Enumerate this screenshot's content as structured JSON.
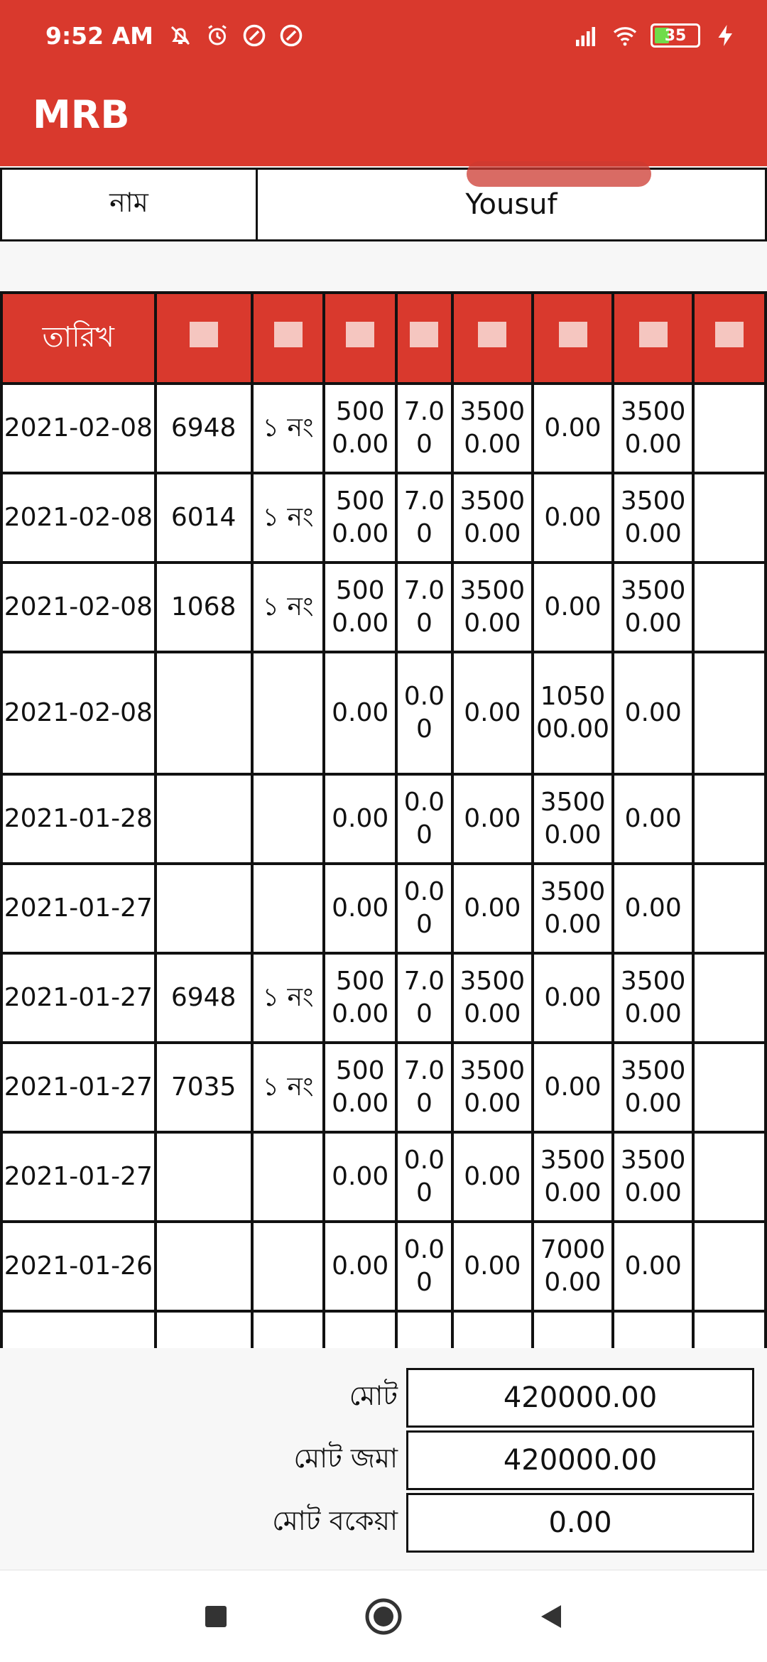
{
  "status_bar": {
    "time": "9:52 AM",
    "battery": "35",
    "icons": [
      "mute-icon",
      "alarm-icon",
      "vpn-icon",
      "vpn-icon",
      "signal-icon",
      "wifi-icon",
      "battery-icon",
      "charging-icon"
    ]
  },
  "app": {
    "title": "MRB"
  },
  "name_row": {
    "label": "নাম",
    "value": "Yousuf"
  },
  "table": {
    "headers": [
      "তারিখ",
      "",
      "",
      "",
      "",
      "",
      "",
      "",
      ""
    ],
    "rows": [
      [
        "2021-02-08",
        "6948",
        "১ নং",
        "5000.00",
        "7.00",
        "35000.00",
        "0.00",
        "35000.00",
        ""
      ],
      [
        "2021-02-08",
        "6014",
        "১ নং",
        "5000.00",
        "7.00",
        "35000.00",
        "0.00",
        "35000.00",
        ""
      ],
      [
        "2021-02-08",
        "1068",
        "১ নং",
        "5000.00",
        "7.00",
        "35000.00",
        "0.00",
        "35000.00",
        ""
      ],
      [
        "2021-02-08",
        "",
        "",
        "0.00",
        "0.00",
        "0.00",
        "105000.00",
        "0.00",
        ""
      ],
      [
        "2021-01-28",
        "",
        "",
        "0.00",
        "0.00",
        "0.00",
        "35000.00",
        "0.00",
        ""
      ],
      [
        "2021-01-27",
        "",
        "",
        "0.00",
        "0.00",
        "0.00",
        "35000.00",
        "0.00",
        ""
      ],
      [
        "2021-01-27",
        "6948",
        "১ নং",
        "5000.00",
        "7.00",
        "35000.00",
        "0.00",
        "35000.00",
        ""
      ],
      [
        "2021-01-27",
        "7035",
        "১ নং",
        "5000.00",
        "7.00",
        "35000.00",
        "0.00",
        "35000.00",
        ""
      ],
      [
        "2021-01-27",
        "",
        "",
        "0.00",
        "0.00",
        "0.00",
        "35000.00",
        "35000.00",
        ""
      ],
      [
        "2021-01-26",
        "",
        "",
        "0.00",
        "0.00",
        "0.00",
        "70000.00",
        "0.00",
        ""
      ],
      [
        "",
        "",
        "",
        "",
        "",
        "",
        "",
        "",
        ""
      ]
    ]
  },
  "totals": {
    "total_label": "মোট",
    "total_value": "420000.00",
    "deposit_label": "মোট জমা",
    "deposit_value": "420000.00",
    "due_label": "মোট বকেয়া",
    "due_value": "0.00"
  },
  "colors": {
    "primary": "#d9392d",
    "border": "#111111"
  }
}
